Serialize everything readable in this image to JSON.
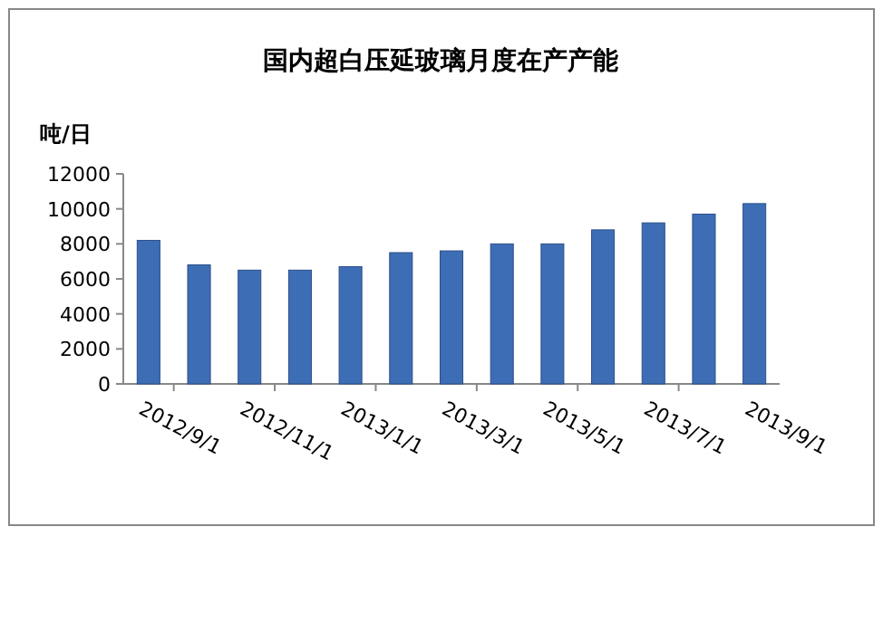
{
  "chart_data": {
    "type": "bar",
    "title": "国内超白压延玻璃月度在产产能",
    "ylabel": "吨/日",
    "categories": [
      "2012/9/1",
      null,
      "2012/11/1",
      null,
      "2013/1/1",
      null,
      "2013/3/1",
      null,
      "2013/5/1",
      null,
      "2013/7/1",
      null,
      "2013/9/1"
    ],
    "values": [
      8200,
      6800,
      6500,
      6500,
      6700,
      7500,
      7600,
      8000,
      8000,
      8800,
      9200,
      9700,
      10300
    ],
    "color": "#3d6db5",
    "ylim": [
      0,
      12000
    ],
    "yticks": [
      0,
      2000,
      4000,
      6000,
      8000,
      10000,
      12000
    ],
    "grid": false
  }
}
